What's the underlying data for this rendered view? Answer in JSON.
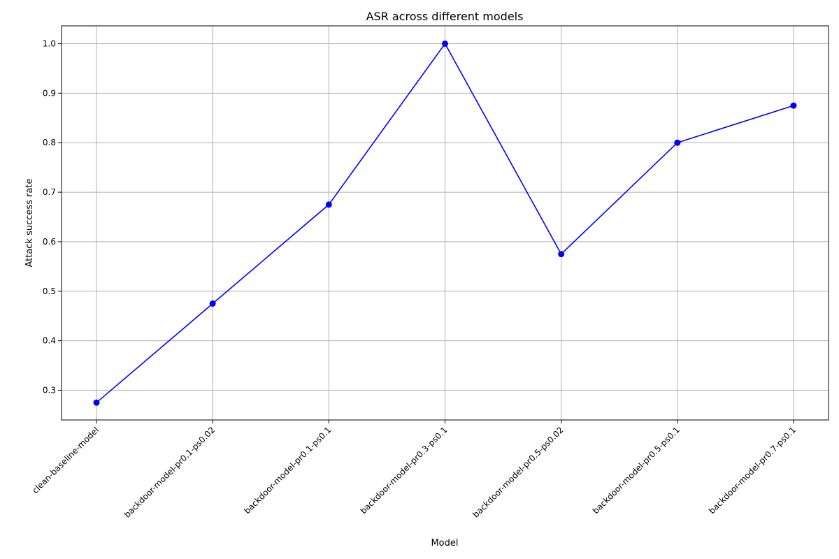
{
  "chart_data": {
    "type": "line",
    "title": "ASR across different models",
    "xlabel": "Model",
    "ylabel": "Attack success rate",
    "categories": [
      "clean-baseline-model",
      "backdoor-model-pr0.1-ps0.02",
      "backdoor-model-pr0.1-ps0.1",
      "backdoor-model-pr0.3-ps0.1",
      "backdoor-model-pr0.5-ps0.02",
      "backdoor-model-pr0.5-ps0.1",
      "backdoor-model-pr0.7-ps0.1"
    ],
    "series": [
      {
        "values": [
          0.275,
          0.475,
          0.675,
          1.0,
          0.575,
          0.8,
          0.875
        ],
        "color": "#0000ff",
        "marker": "circle"
      }
    ],
    "ylim": [
      0.24,
      1.036
    ],
    "yticks": [
      "0.3",
      "0.4",
      "0.5",
      "0.6",
      "0.7",
      "0.8",
      "0.9",
      "1.0"
    ],
    "grid": true
  }
}
